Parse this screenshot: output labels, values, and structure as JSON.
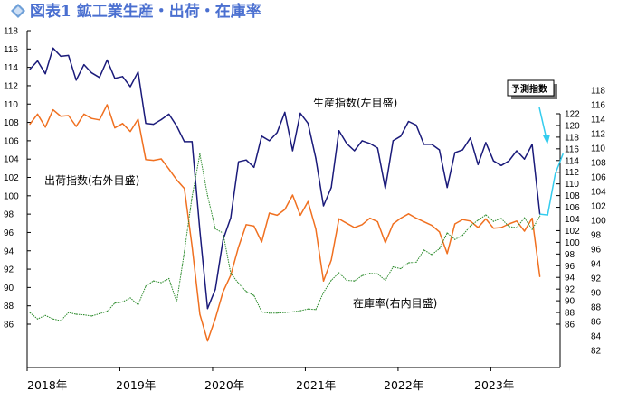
{
  "chart_data": {
    "type": "line",
    "title": "図表1 鉱工業生産・出荷・在庫率",
    "x_labels": [
      "2018年",
      "2019年",
      "2020年",
      "2021年",
      "2022年",
      "2023年"
    ],
    "left_axis": {
      "ylim": [
        86,
        118
      ],
      "ticks": [
        86,
        88,
        90,
        92,
        94,
        96,
        98,
        100,
        102,
        104,
        106,
        108,
        110,
        112,
        114,
        116,
        118
      ]
    },
    "right_inner_axis": {
      "ylim": [
        86,
        122
      ],
      "ticks": [
        86,
        88,
        90,
        92,
        94,
        96,
        98,
        100,
        102,
        104,
        106,
        108,
        110,
        112,
        114,
        116,
        118,
        120,
        122
      ]
    },
    "right_outer_axis": {
      "ylim": [
        82,
        118
      ],
      "ticks": [
        82,
        84,
        86,
        88,
        90,
        92,
        94,
        96,
        98,
        100,
        102,
        104,
        106,
        108,
        110,
        112,
        114,
        116,
        118
      ]
    },
    "series": [
      {
        "name": "生産指数(左目盛)",
        "axis": "left",
        "color": "#1a1a7a",
        "style": "solid",
        "values": [
          113.8,
          114.7,
          113.3,
          116.1,
          115.2,
          115.3,
          112.6,
          114.3,
          113.4,
          112.9,
          114.8,
          112.8,
          113.0,
          111.9,
          113.5,
          107.9,
          107.8,
          108.3,
          108.9,
          107.6,
          105.9,
          105.9,
          96.2,
          87.7,
          89.8,
          95.2,
          97.6,
          103.7,
          103.9,
          103.1,
          106.5,
          106.0,
          106.9,
          109.1,
          104.9,
          109.0,
          107.9,
          104.1,
          98.9,
          100.9,
          107.1,
          105.7,
          104.9,
          106.0,
          105.7,
          105.2,
          100.8,
          106.0,
          106.5,
          108.1,
          107.7,
          105.6,
          105.6,
          105.0,
          100.9,
          104.7,
          105.0,
          106.3,
          103.4,
          105.8,
          103.8,
          103.3,
          103.8,
          104.9,
          104.0,
          105.6,
          98.0
        ],
        "forecast": [
          97.9,
          102.4,
          104.6
        ]
      },
      {
        "name": "出荷指数(右外目盛)",
        "axis": "right_outer",
        "color": "#f07020",
        "style": "solid",
        "values": [
          113.3,
          114.7,
          112.9,
          115.3,
          114.4,
          114.5,
          113.0,
          114.7,
          114.1,
          113.9,
          116.0,
          112.8,
          113.4,
          112.3,
          114.0,
          108.4,
          108.3,
          108.5,
          107.1,
          105.6,
          104.4,
          96.4,
          87.0,
          83.3,
          86.4,
          90.1,
          92.4,
          96.3,
          99.4,
          99.2,
          97.0,
          101.0,
          100.7,
          101.5,
          103.5,
          100.7,
          102.6,
          98.8,
          91.6,
          94.5,
          100.2,
          99.6,
          99.0,
          99.4,
          100.3,
          99.8,
          96.9,
          99.5,
          100.3,
          100.9,
          100.3,
          99.8,
          99.3,
          98.4,
          95.4,
          99.5,
          100.1,
          99.9,
          99.0,
          100.2,
          98.9,
          99.0,
          99.5,
          99.9,
          98.5,
          100.3,
          92.2
        ]
      },
      {
        "name": "在庫率(右内目盛)",
        "axis": "right_inner",
        "color": "#2a8a2a",
        "style": "dotted",
        "values": [
          88.0,
          86.9,
          87.5,
          86.9,
          86.6,
          88.0,
          87.7,
          87.6,
          87.4,
          87.8,
          88.2,
          89.6,
          89.8,
          90.5,
          89.3,
          92.5,
          93.4,
          93.1,
          93.8,
          89.8,
          98.4,
          107.8,
          115.1,
          108.0,
          102.3,
          101.6,
          94.7,
          93.0,
          91.6,
          90.9,
          88.1,
          87.9,
          87.9,
          88.0,
          88.1,
          88.3,
          88.6,
          88.5,
          91.4,
          93.5,
          94.8,
          93.5,
          93.4,
          94.3,
          94.7,
          94.6,
          93.5,
          95.8,
          95.5,
          96.5,
          96.6,
          98.7,
          97.9,
          98.9,
          101.6,
          100.5,
          101.2,
          102.8,
          103.8,
          104.7,
          103.6,
          104.1,
          102.7,
          102.5,
          104.2,
          102.2,
          104.5
        ]
      }
    ],
    "annotations": {
      "production_label": "生産指数(左目盛)",
      "shipment_label": "出荷指数(右外目盛)",
      "inventory_label": "在庫率(右内目盛)",
      "forecast_label": "予測指数"
    }
  },
  "colors": {
    "title": "#4a6fd0",
    "title_icon": "#6fa0d8",
    "forecast_line": "#33ccee",
    "axis": "#000000"
  }
}
